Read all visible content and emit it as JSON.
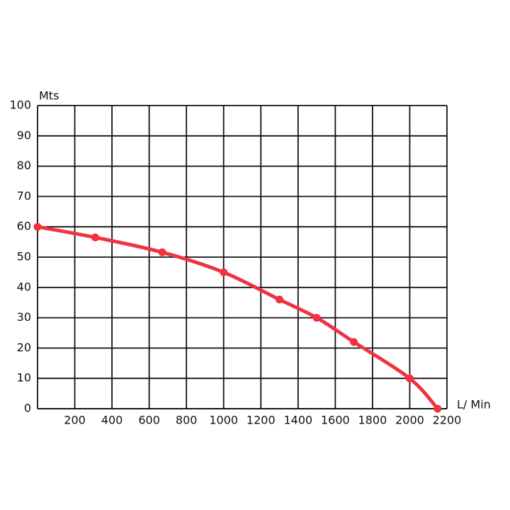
{
  "chart_data": {
    "type": "line",
    "y_label": "Mts",
    "x_label": "L/ Min",
    "series": [
      {
        "color": "#f0333f",
        "x": [
          0,
          310,
          670,
          1000,
          1300,
          1500,
          1700,
          2000,
          2150
        ],
        "values": [
          60,
          56.5,
          51.6,
          45,
          36,
          30,
          22,
          10,
          0
        ]
      }
    ],
    "xlim": [
      0,
      2200
    ],
    "xticks": [
      200,
      400,
      600,
      800,
      1000,
      1200,
      1400,
      1600,
      1800,
      2000,
      2200
    ],
    "ylim": [
      0,
      100
    ],
    "yticks": [
      0,
      10,
      20,
      30,
      40,
      50,
      60,
      70,
      80,
      90,
      100
    ],
    "grid": true
  }
}
